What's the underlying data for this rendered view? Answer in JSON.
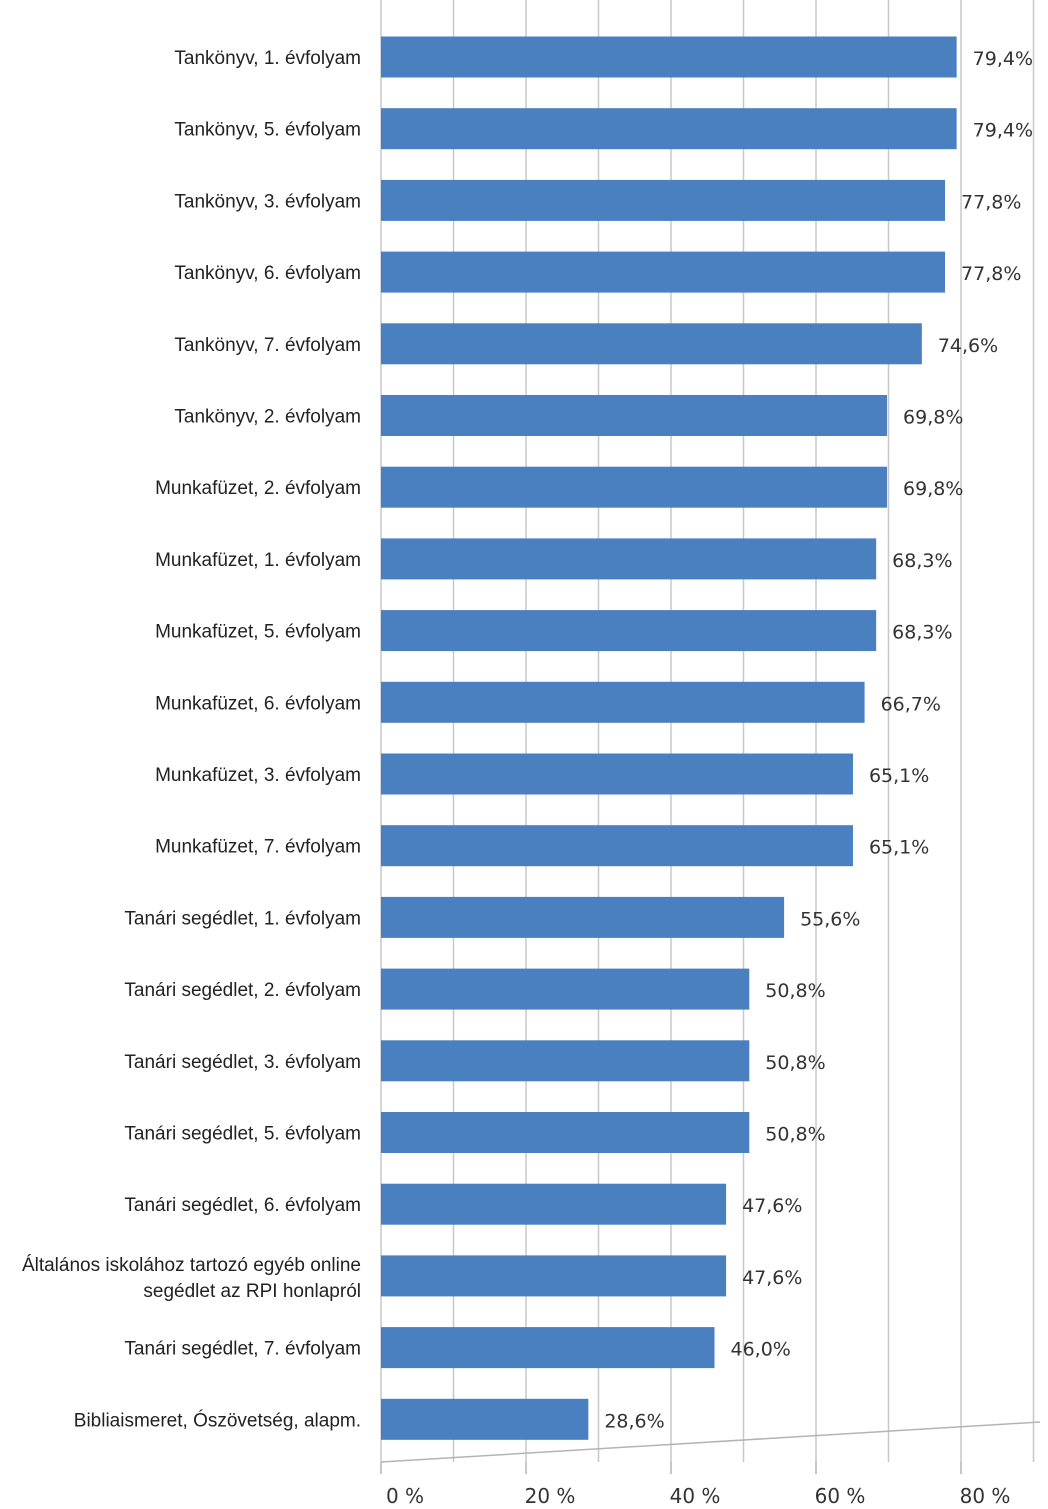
{
  "chart_data": {
    "type": "bar",
    "orientation": "horizontal",
    "title": "",
    "xlabel": "",
    "ylabel": "",
    "categories": [
      "Tankönyv, 1. évfolyam",
      "Tankönyv, 5. évfolyam",
      "Tankönyv, 3. évfolyam",
      "Tankönyv, 6. évfolyam",
      "Tankönyv, 7. évfolyam",
      "Tankönyv, 2. évfolyam",
      "Munkafüzet, 2. évfolyam",
      "Munkafüzet, 1. évfolyam",
      "Munkafüzet, 5. évfolyam",
      "Munkafüzet, 6. évfolyam",
      "Munkafüzet, 3. évfolyam",
      "Munkafüzet, 7. évfolyam",
      "Tanári segédlet, 1. évfolyam",
      "Tanári segédlet, 2. évfolyam",
      "Tanári segédlet, 3. évfolyam",
      "Tanári segédlet, 5. évfolyam",
      "Tanári segédlet, 6. évfolyam",
      "Általános iskolához tartozó egyéb online segédlet az RPI honlapról",
      "Tanári segédlet, 7. évfolyam",
      "Bibliaismeret, Ószövetség, alapm."
    ],
    "values": [
      79.4,
      79.4,
      77.8,
      77.8,
      74.6,
      69.8,
      69.8,
      68.3,
      68.3,
      66.7,
      65.1,
      65.1,
      55.6,
      50.8,
      50.8,
      50.8,
      47.6,
      47.6,
      46.0,
      28.6
    ],
    "value_labels": [
      "79,4%",
      "79,4%",
      "77,8%",
      "77,8%",
      "74,6%",
      "69,8%",
      "69,8%",
      "68,3%",
      "68,3%",
      "66,7%",
      "65,1%",
      "65,1%",
      "55,6%",
      "50,8%",
      "50,8%",
      "50,8%",
      "47,6%",
      "47,6%",
      "46,0%",
      "28,6%"
    ],
    "xlim": [
      0,
      90
    ],
    "xticks": [
      0,
      20,
      40,
      60,
      80
    ],
    "xtick_labels": [
      "0 %",
      "20 %",
      "40 %",
      "60 %",
      "80 %"
    ],
    "grid": true,
    "bar_color": "#4a7fc0",
    "grid_color": "#c8c8c8"
  }
}
